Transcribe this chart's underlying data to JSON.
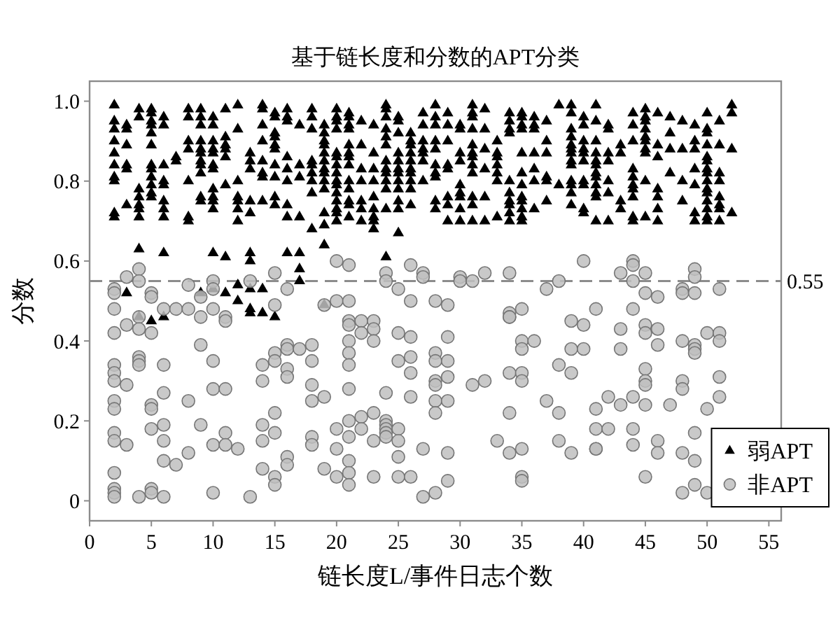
{
  "chart_data": {
    "type": "scatter",
    "title": "基于链长度和分数的APT分类",
    "xlabel": "链长度L/事件日志个数",
    "ylabel": "分数",
    "xlim": [
      0,
      56
    ],
    "ylim": [
      -0.05,
      1.05
    ],
    "xticks": [
      0,
      5,
      10,
      15,
      20,
      25,
      30,
      35,
      40,
      45,
      50,
      55
    ],
    "yticks": [
      0,
      0.2,
      0.4,
      0.6,
      0.8,
      {
        "value": 1,
        "label": "1.0"
      }
    ],
    "legend": "bottom right",
    "ref_lines": [
      {
        "axis": "y",
        "value": 0.55,
        "label": "0.55",
        "color": "#8c8c8c",
        "line_style": "dashed"
      }
    ],
    "series": [
      {
        "name": "弱APT",
        "color": "#000000",
        "marker": "triangle",
        "x": [
          2,
          2,
          2,
          2,
          2,
          2,
          2,
          2,
          2,
          2,
          3,
          3,
          3,
          3,
          3,
          3,
          3,
          4,
          4,
          4,
          4,
          4,
          4,
          4,
          4,
          4,
          5,
          5,
          5,
          5,
          5,
          5,
          5,
          5,
          5,
          5,
          5,
          5,
          5,
          6,
          6,
          6,
          6,
          6,
          6,
          6,
          6,
          6,
          6,
          7,
          7,
          8,
          8,
          8,
          8,
          8,
          8,
          8,
          9,
          9,
          9,
          9,
          9,
          9,
          9,
          9,
          9,
          9,
          9,
          9,
          10,
          10,
          10,
          10,
          10,
          10,
          10,
          10,
          10,
          10,
          10,
          10,
          10,
          11,
          11,
          11,
          11,
          11,
          11,
          11,
          11,
          12,
          12,
          12,
          12,
          12,
          12,
          12,
          12,
          12,
          13,
          13,
          13,
          13,
          13,
          13,
          13,
          13,
          13,
          13,
          14,
          14,
          14,
          14,
          14,
          14,
          14,
          14,
          14,
          14,
          15,
          15,
          15,
          15,
          15,
          15,
          15,
          15,
          15,
          15,
          15,
          16,
          16,
          16,
          16,
          16,
          16,
          16,
          16,
          16,
          17,
          17,
          17,
          17,
          17,
          17,
          17,
          18,
          18,
          18,
          18,
          18,
          18,
          18,
          18,
          18,
          19,
          19,
          19,
          19,
          19,
          19,
          19,
          19,
          19,
          19,
          19,
          19,
          19,
          19,
          20,
          20,
          20,
          20,
          20,
          20,
          20,
          20,
          20,
          20,
          20,
          20,
          20,
          20,
          20,
          21,
          21,
          21,
          21,
          21,
          21,
          21,
          21,
          21,
          21,
          21,
          21,
          21,
          22,
          22,
          22,
          22,
          22,
          22,
          22,
          23,
          23,
          23,
          23,
          23,
          23,
          23,
          23,
          23,
          24,
          24,
          24,
          24,
          24,
          24,
          24,
          24,
          24,
          24,
          24,
          24,
          24,
          25,
          25,
          25,
          25,
          25,
          25,
          25,
          25,
          25,
          25,
          25,
          25,
          26,
          26,
          26,
          26,
          26,
          26,
          26,
          26,
          26,
          26,
          27,
          27,
          27,
          27,
          27,
          27,
          27,
          28,
          28,
          28,
          28,
          28,
          28,
          28,
          28,
          28,
          28,
          29,
          29,
          29,
          29,
          29,
          29,
          29,
          29,
          30,
          30,
          30,
          30,
          30,
          30,
          30,
          30,
          30,
          31,
          31,
          31,
          31,
          31,
          31,
          31,
          31,
          31,
          31,
          31,
          31,
          32,
          32,
          32,
          32,
          32,
          32,
          33,
          33,
          33,
          33,
          33,
          33,
          33,
          34,
          34,
          34,
          34,
          34,
          34,
          34,
          34,
          34,
          34,
          35,
          35,
          35,
          35,
          35,
          35,
          35,
          35,
          35,
          35,
          35,
          35,
          36,
          36,
          36,
          36,
          36,
          36,
          36,
          37,
          37,
          37,
          37,
          37,
          37,
          38,
          38,
          39,
          39,
          39,
          39,
          39,
          39,
          39,
          39,
          39,
          39,
          39,
          39,
          39,
          40,
          40,
          40,
          40,
          40,
          40,
          40,
          40,
          40,
          40,
          41,
          41,
          41,
          41,
          41,
          41,
          41,
          41,
          41,
          41,
          41,
          41,
          42,
          42,
          42,
          42,
          42,
          42,
          42,
          43,
          43,
          43,
          43,
          44,
          44,
          44,
          44,
          44,
          44,
          44,
          44,
          44,
          44,
          45,
          45,
          45,
          45,
          45,
          45,
          45,
          45,
          45,
          45,
          46,
          46,
          46,
          46,
          46,
          46,
          46,
          47,
          47,
          47,
          47,
          48,
          48,
          48,
          48,
          49,
          49,
          49,
          49,
          49,
          49,
          49,
          50,
          50,
          50,
          50,
          50,
          50,
          50,
          50,
          50,
          50,
          50,
          50,
          50,
          50,
          50,
          51,
          51,
          51,
          51,
          51,
          51,
          51,
          51,
          52,
          52,
          52,
          52
        ],
        "values": [
          0.99,
          0.95,
          0.93,
          0.9,
          0.87,
          0.84,
          0.81,
          0.8,
          0.72,
          0.71,
          0.94,
          0.93,
          0.89,
          0.84,
          0.83,
          0.74,
          0.52,
          0.98,
          0.96,
          0.78,
          0.76,
          0.74,
          0.73,
          0.71,
          0.63,
          0.46,
          0.98,
          0.97,
          0.95,
          0.94,
          0.92,
          0.89,
          0.84,
          0.83,
          0.81,
          0.79,
          0.77,
          0.76,
          0.45,
          0.96,
          0.94,
          0.84,
          0.8,
          0.79,
          0.75,
          0.73,
          0.71,
          0.62,
          0.46,
          0.86,
          0.85,
          0.98,
          0.96,
          0.9,
          0.88,
          0.8,
          0.71,
          0.7,
          0.98,
          0.96,
          0.94,
          0.9,
          0.88,
          0.87,
          0.85,
          0.84,
          0.82,
          0.76,
          0.75,
          0.52,
          0.96,
          0.94,
          0.9,
          0.88,
          0.87,
          0.84,
          0.83,
          0.78,
          0.76,
          0.75,
          0.73,
          0.62,
          0.53,
          0.98,
          0.91,
          0.89,
          0.88,
          0.86,
          0.79,
          0.61,
          0.52,
          0.99,
          0.93,
          0.8,
          0.76,
          0.75,
          0.73,
          0.7,
          0.54,
          0.5,
          0.87,
          0.85,
          0.83,
          0.75,
          0.72,
          0.62,
          0.6,
          0.53,
          0.48,
          0.47,
          0.99,
          0.98,
          0.94,
          0.9,
          0.85,
          0.82,
          0.81,
          0.75,
          0.53,
          0.47,
          0.97,
          0.96,
          0.92,
          0.91,
          0.89,
          0.88,
          0.84,
          0.81,
          0.76,
          0.74,
          0.46,
          0.98,
          0.96,
          0.95,
          0.86,
          0.83,
          0.8,
          0.74,
          0.71,
          0.62,
          0.94,
          0.84,
          0.81,
          0.71,
          0.62,
          0.58,
          0.55,
          0.98,
          0.96,
          0.93,
          0.85,
          0.84,
          0.82,
          0.8,
          0.77,
          0.68,
          0.94,
          0.92,
          0.9,
          0.89,
          0.87,
          0.85,
          0.83,
          0.82,
          0.8,
          0.78,
          0.72,
          0.69,
          0.64,
          0.49,
          0.98,
          0.96,
          0.95,
          0.93,
          0.87,
          0.86,
          0.84,
          0.82,
          0.8,
          0.79,
          0.77,
          0.75,
          0.73,
          0.72,
          0.7,
          0.97,
          0.96,
          0.94,
          0.93,
          0.89,
          0.87,
          0.86,
          0.84,
          0.8,
          0.78,
          0.75,
          0.74,
          0.71,
          0.95,
          0.89,
          0.83,
          0.8,
          0.75,
          0.73,
          0.7,
          0.94,
          0.87,
          0.83,
          0.8,
          0.76,
          0.73,
          0.71,
          0.7,
          0.68,
          0.99,
          0.98,
          0.96,
          0.93,
          0.91,
          0.89,
          0.85,
          0.83,
          0.82,
          0.8,
          0.78,
          0.73,
          0.61,
          0.96,
          0.95,
          0.92,
          0.87,
          0.85,
          0.83,
          0.82,
          0.8,
          0.78,
          0.75,
          0.73,
          0.67,
          0.92,
          0.9,
          0.89,
          0.87,
          0.85,
          0.83,
          0.82,
          0.8,
          0.78,
          0.74,
          0.97,
          0.94,
          0.9,
          0.88,
          0.87,
          0.85,
          0.8,
          0.99,
          0.96,
          0.94,
          0.9,
          0.88,
          0.84,
          0.82,
          0.81,
          0.75,
          0.73,
          0.97,
          0.94,
          0.9,
          0.84,
          0.83,
          0.76,
          0.74,
          0.7,
          0.94,
          0.93,
          0.87,
          0.85,
          0.79,
          0.77,
          0.76,
          0.73,
          0.7,
          0.99,
          0.97,
          0.96,
          0.93,
          0.89,
          0.87,
          0.86,
          0.84,
          0.82,
          0.76,
          0.74,
          0.7,
          0.98,
          0.93,
          0.88,
          0.83,
          0.76,
          0.7,
          0.9,
          0.87,
          0.86,
          0.84,
          0.82,
          0.8,
          0.71,
          0.97,
          0.95,
          0.93,
          0.92,
          0.8,
          0.77,
          0.75,
          0.74,
          0.72,
          0.7,
          0.97,
          0.96,
          0.94,
          0.93,
          0.87,
          0.82,
          0.79,
          0.76,
          0.75,
          0.73,
          0.71,
          0.7,
          0.96,
          0.94,
          0.93,
          0.87,
          0.83,
          0.8,
          0.73,
          0.95,
          0.9,
          0.87,
          0.81,
          0.8,
          0.75,
          0.99,
          0.79,
          0.99,
          0.97,
          0.93,
          0.91,
          0.89,
          0.88,
          0.87,
          0.85,
          0.84,
          0.8,
          0.79,
          0.77,
          0.74,
          0.96,
          0.94,
          0.9,
          0.88,
          0.87,
          0.85,
          0.8,
          0.79,
          0.73,
          0.72,
          0.99,
          0.95,
          0.9,
          0.87,
          0.85,
          0.84,
          0.82,
          0.81,
          0.79,
          0.77,
          0.76,
          0.7,
          0.94,
          0.93,
          0.87,
          0.85,
          0.8,
          0.77,
          0.7,
          0.89,
          0.87,
          0.75,
          0.73,
          0.97,
          0.94,
          0.9,
          0.83,
          0.81,
          0.79,
          0.78,
          0.76,
          0.71,
          0.7,
          0.98,
          0.96,
          0.95,
          0.93,
          0.91,
          0.9,
          0.88,
          0.87,
          0.8,
          0.71,
          0.97,
          0.89,
          0.86,
          0.78,
          0.76,
          0.73,
          0.7,
          0.96,
          0.92,
          0.88,
          0.82,
          0.95,
          0.88,
          0.8,
          0.75,
          0.94,
          0.9,
          0.88,
          0.83,
          0.79,
          0.72,
          0.7,
          0.97,
          0.93,
          0.92,
          0.89,
          0.86,
          0.85,
          0.83,
          0.82,
          0.8,
          0.78,
          0.77,
          0.75,
          0.73,
          0.71,
          0.7,
          0.95,
          0.89,
          0.82,
          0.8,
          0.76,
          0.74,
          0.73,
          0.7,
          0.99,
          0.97,
          0.88,
          0.72
        ]
      },
      {
        "name": "非APT",
        "color": "#c0c0c0",
        "marker": "circle",
        "x": [
          2,
          2,
          2,
          2,
          2,
          2,
          2,
          2,
          2,
          2,
          2,
          2,
          2,
          2,
          2,
          3,
          3,
          3,
          3,
          4,
          4,
          4,
          4,
          4,
          4,
          4,
          4,
          5,
          5,
          5,
          5,
          5,
          5,
          5,
          5,
          6,
          6,
          6,
          6,
          6,
          6,
          6,
          7,
          7,
          8,
          8,
          8,
          8,
          9,
          9,
          9,
          9,
          10,
          10,
          10,
          10,
          10,
          10,
          10,
          11,
          11,
          11,
          11,
          11,
          12,
          13,
          13,
          14,
          14,
          14,
          14,
          14,
          15,
          15,
          15,
          15,
          15,
          15,
          15,
          15,
          16,
          16,
          16,
          16,
          16,
          16,
          16,
          17,
          18,
          18,
          18,
          18,
          18,
          18,
          19,
          19,
          19,
          20,
          20,
          20,
          20,
          20,
          21,
          21,
          21,
          21,
          21,
          21,
          21,
          21,
          21,
          21,
          21,
          21,
          21,
          22,
          22,
          22,
          22,
          23,
          23,
          23,
          23,
          23,
          23,
          24,
          24,
          24,
          24,
          24,
          24,
          24,
          24,
          25,
          25,
          25,
          25,
          25,
          25,
          25,
          26,
          26,
          26,
          26,
          26,
          26,
          26,
          27,
          27,
          27,
          27,
          28,
          28,
          28,
          28,
          28,
          28,
          28,
          28,
          29,
          29,
          29,
          29,
          29,
          29,
          29,
          30,
          30,
          31,
          31,
          32,
          32,
          33,
          34,
          34,
          34,
          34,
          34,
          34,
          34,
          35,
          35,
          35,
          35,
          35,
          35,
          35,
          35,
          36,
          37,
          37,
          38,
          38,
          38,
          38,
          39,
          39,
          39,
          39,
          40,
          40,
          40,
          41,
          41,
          41,
          41,
          41,
          42,
          42,
          43,
          43,
          43,
          43,
          44,
          44,
          44,
          44,
          44,
          44,
          44,
          45,
          45,
          45,
          45,
          45,
          45,
          45,
          45,
          45,
          46,
          46,
          46,
          46,
          46,
          47,
          48,
          48,
          48,
          48,
          48,
          48,
          48,
          49,
          49,
          49,
          49,
          49,
          49,
          49,
          49,
          49,
          50,
          50,
          50,
          51,
          51,
          51,
          51,
          51
        ],
        "values": [
          0.53,
          0.52,
          0.48,
          0.42,
          0.34,
          0.32,
          0.3,
          0.25,
          0.23,
          0.17,
          0.15,
          0.07,
          0.03,
          0.02,
          0.01,
          0.56,
          0.44,
          0.29,
          0.14,
          0.58,
          0.55,
          0.46,
          0.43,
          0.36,
          0.35,
          0.34,
          0.01,
          0.52,
          0.51,
          0.42,
          0.24,
          0.23,
          0.18,
          0.03,
          0.02,
          0.48,
          0.34,
          0.27,
          0.19,
          0.15,
          0.1,
          0.01,
          0.48,
          0.09,
          0.54,
          0.48,
          0.25,
          0.12,
          0.51,
          0.46,
          0.39,
          0.19,
          0.55,
          0.53,
          0.48,
          0.35,
          0.28,
          0.14,
          0.02,
          0.46,
          0.45,
          0.28,
          0.17,
          0.14,
          0.13,
          0.55,
          0.01,
          0.34,
          0.3,
          0.19,
          0.15,
          0.08,
          0.57,
          0.49,
          0.37,
          0.35,
          0.22,
          0.17,
          0.06,
          0.04,
          0.53,
          0.39,
          0.38,
          0.33,
          0.31,
          0.11,
          0.09,
          0.38,
          0.39,
          0.35,
          0.29,
          0.25,
          0.16,
          0.14,
          0.49,
          0.26,
          0.08,
          0.6,
          0.5,
          0.18,
          0.13,
          0.06,
          0.59,
          0.5,
          0.45,
          0.44,
          0.4,
          0.37,
          0.34,
          0.28,
          0.2,
          0.16,
          0.1,
          0.07,
          0.04,
          0.45,
          0.42,
          0.21,
          0.18,
          0.45,
          0.43,
          0.4,
          0.22,
          0.15,
          0.06,
          0.57,
          0.55,
          0.27,
          0.2,
          0.19,
          0.18,
          0.17,
          0.16,
          0.53,
          0.42,
          0.35,
          0.18,
          0.15,
          0.11,
          0.06,
          0.59,
          0.5,
          0.41,
          0.36,
          0.32,
          0.26,
          0.06,
          0.57,
          0.56,
          0.13,
          0.01,
          0.5,
          0.37,
          0.35,
          0.3,
          0.29,
          0.25,
          0.22,
          0.02,
          0.49,
          0.41,
          0.35,
          0.31,
          0.25,
          0.12,
          0.05,
          0.56,
          0.55,
          0.55,
          0.29,
          0.57,
          0.3,
          0.15,
          0.57,
          0.47,
          0.46,
          0.46,
          0.32,
          0.22,
          0.12,
          0.48,
          0.4,
          0.38,
          0.32,
          0.3,
          0.13,
          0.06,
          0.05,
          0.4,
          0.53,
          0.25,
          0.55,
          0.34,
          0.22,
          0.15,
          0.45,
          0.38,
          0.32,
          0.12,
          0.6,
          0.44,
          0.38,
          0.48,
          0.23,
          0.18,
          0.13,
          0.13,
          0.26,
          0.18,
          0.57,
          0.43,
          0.38,
          0.24,
          0.6,
          0.59,
          0.55,
          0.48,
          0.26,
          0.18,
          0.14,
          0.57,
          0.52,
          0.44,
          0.42,
          0.33,
          0.3,
          0.29,
          0.24,
          0.06,
          0.51,
          0.43,
          0.39,
          0.15,
          0.12,
          0.24,
          0.53,
          0.52,
          0.4,
          0.3,
          0.28,
          0.12,
          0.02,
          0.58,
          0.56,
          0.52,
          0.39,
          0.38,
          0.37,
          0.17,
          0.1,
          0.04,
          0.42,
          0.23,
          0.02,
          0.53,
          0.42,
          0.4,
          0.31,
          0.26
        ]
      }
    ]
  }
}
